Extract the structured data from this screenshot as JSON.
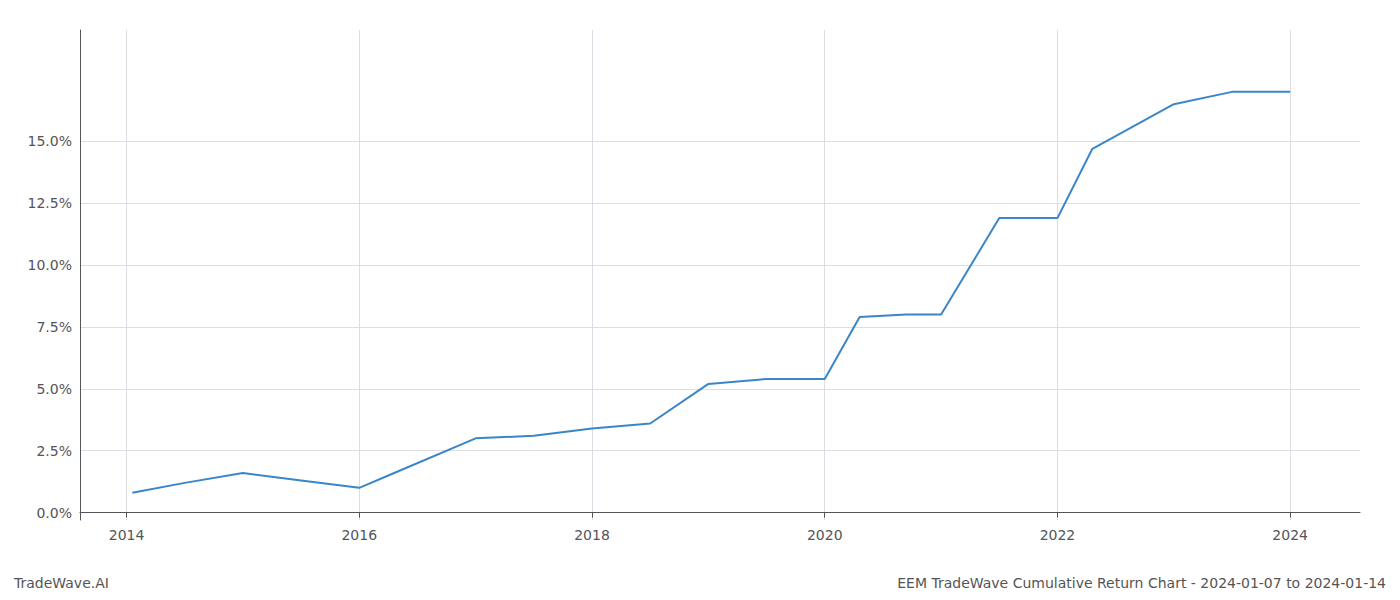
{
  "chart_data": {
    "type": "line",
    "x": [
      2014.05,
      2014.5,
      2015.0,
      2015.5,
      2016.0,
      2016.3,
      2017.0,
      2017.5,
      2018.0,
      2018.5,
      2019.0,
      2019.5,
      2020.0,
      2020.3,
      2020.7,
      2021.0,
      2021.5,
      2022.0,
      2022.3,
      2023.0,
      2023.5,
      2024.0
    ],
    "values": [
      0.008,
      0.012,
      0.016,
      0.013,
      0.01,
      0.016,
      0.03,
      0.031,
      0.034,
      0.036,
      0.052,
      0.054,
      0.054,
      0.079,
      0.08,
      0.08,
      0.119,
      0.119,
      0.147,
      0.165,
      0.17,
      0.17
    ],
    "color": "#3a86c8",
    "xlim": [
      2013.6,
      2024.6
    ],
    "xticks": [
      2014,
      2016,
      2018,
      2020,
      2022,
      2024
    ],
    "ylim": [
      -0.003,
      0.195
    ],
    "yticks": [
      {
        "value": 0.0,
        "label": "0.0%"
      },
      {
        "value": 0.025,
        "label": "2.5%"
      },
      {
        "value": 0.05,
        "label": "5.0%"
      },
      {
        "value": 0.075,
        "label": "7.5%"
      },
      {
        "value": 0.1,
        "label": "10.0%"
      },
      {
        "value": 0.125,
        "label": "12.5%"
      },
      {
        "value": 0.15,
        "label": "15.0%"
      }
    ],
    "grid": true,
    "annotations": [
      "TradeWave.AI",
      "EEM TradeWave Cumulative Return Chart - 2024-01-07 to 2024-01-14"
    ]
  }
}
